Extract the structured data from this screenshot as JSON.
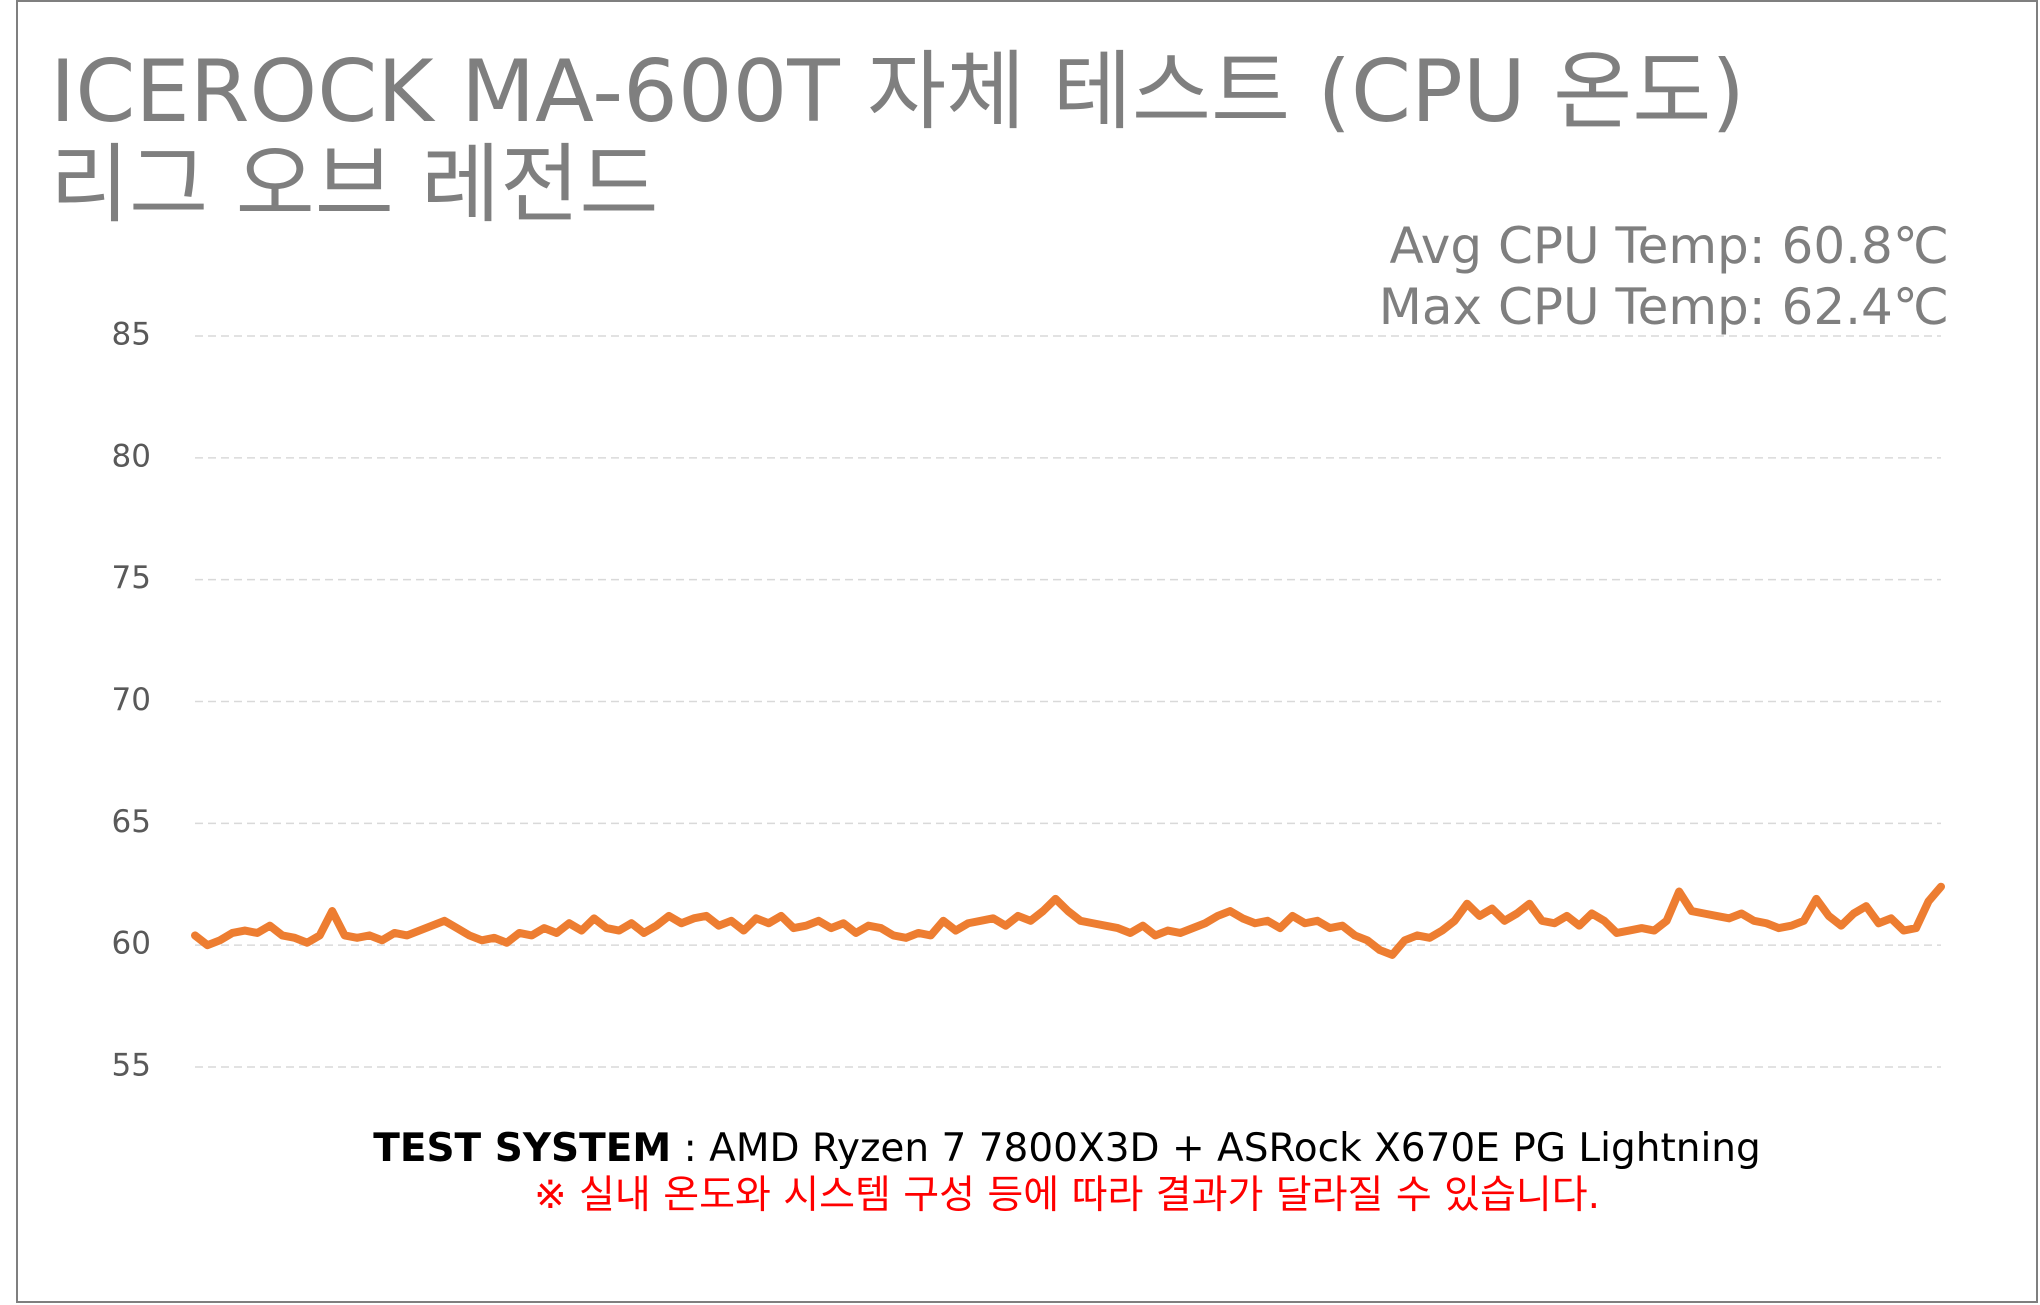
{
  "chart_data": {
    "type": "line",
    "title": "ICEROCK MA-600T  자체 테스트 (CPU 온도)",
    "subtitle": "리그 오브 레전드",
    "annotations": [
      "Avg CPU Temp: 60.8℃",
      "Max CPU Temp: 62.4℃"
    ],
    "footer": {
      "label": "TEST SYSTEM",
      "text": " : AMD Ryzen 7 7800X3D + ASRock X670E PG Lightning"
    },
    "note": "※ 실내 온도와 시스템 구성 등에 따라 결과가 달라질 수 있습니다.",
    "color": "#ed7d31",
    "values": [
      60.4,
      60.0,
      60.2,
      60.5,
      60.6,
      60.5,
      60.8,
      60.4,
      60.3,
      60.1,
      60.4,
      61.4,
      60.4,
      60.3,
      60.4,
      60.2,
      60.5,
      60.4,
      60.6,
      60.8,
      61.0,
      60.7,
      60.4,
      60.2,
      60.3,
      60.1,
      60.5,
      60.4,
      60.7,
      60.5,
      60.9,
      60.6,
      61.1,
      60.7,
      60.6,
      60.9,
      60.5,
      60.8,
      61.2,
      60.9,
      61.1,
      61.2,
      60.8,
      61.0,
      60.6,
      61.1,
      60.9,
      61.2,
      60.7,
      60.8,
      61.0,
      60.7,
      60.9,
      60.5,
      60.8,
      60.7,
      60.4,
      60.3,
      60.5,
      60.4,
      61.0,
      60.6,
      60.9,
      61.0,
      61.1,
      60.8,
      61.2,
      61.0,
      61.4,
      61.9,
      61.4,
      61.0,
      60.9,
      60.8,
      60.7,
      60.5,
      60.8,
      60.4,
      60.6,
      60.5,
      60.7,
      60.9,
      61.2,
      61.4,
      61.1,
      60.9,
      61.0,
      60.7,
      61.2,
      60.9,
      61.0,
      60.7,
      60.8,
      60.4,
      60.2,
      59.8,
      59.6,
      60.2,
      60.4,
      60.3,
      60.6,
      61.0,
      61.7,
      61.2,
      61.5,
      61.0,
      61.3,
      61.7,
      61.0,
      60.9,
      61.2,
      60.8,
      61.3,
      61.0,
      60.5,
      60.6,
      60.7,
      60.6,
      61.0,
      62.2,
      61.4,
      61.3,
      61.2,
      61.1,
      61.3,
      61.0,
      60.9,
      60.7,
      60.8,
      61.0,
      61.9,
      61.2,
      60.8,
      61.3,
      61.6,
      60.9,
      61.1,
      60.6,
      60.7,
      61.8,
      62.4
    ],
    "ylim": [
      55,
      85
    ],
    "yticks": [
      55,
      60,
      65,
      70,
      75,
      80,
      85
    ],
    "grid": true
  }
}
